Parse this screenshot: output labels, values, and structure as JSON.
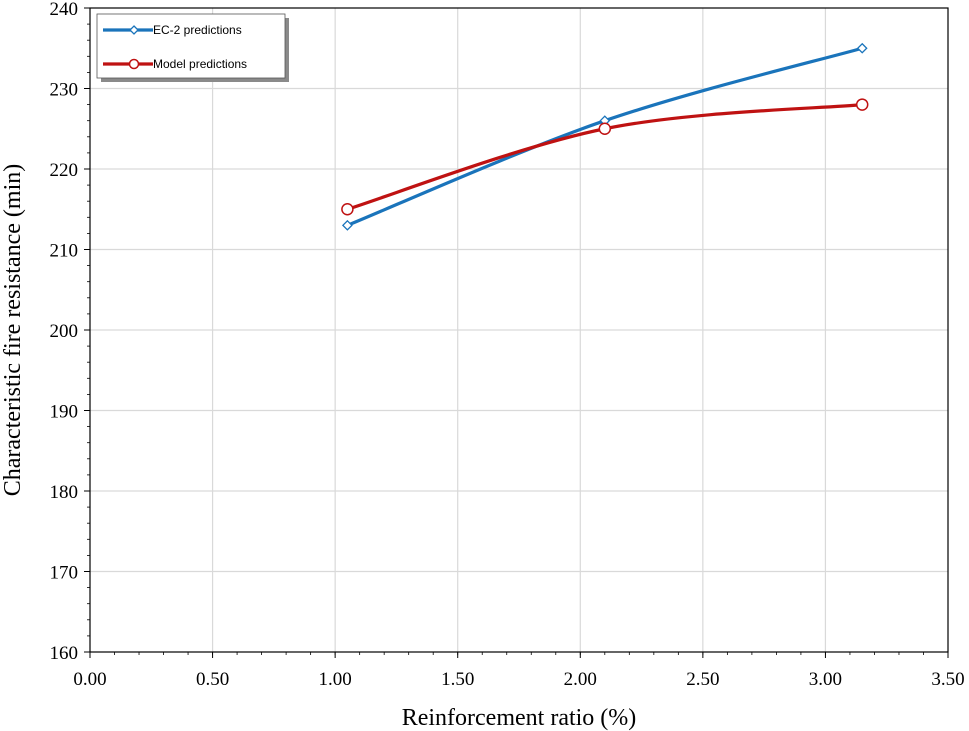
{
  "chart_data": {
    "type": "line",
    "xlabel": "Reinforcement ratio (%)",
    "ylabel": "Characteristic fire resistance (min)",
    "xlim": [
      0,
      3.5
    ],
    "ylim": [
      160,
      240
    ],
    "x_ticks": [
      "0.00",
      "0.50",
      "1.00",
      "1.50",
      "2.00",
      "2.50",
      "3.00",
      "3.50"
    ],
    "y_ticks": [
      "160",
      "170",
      "180",
      "190",
      "200",
      "210",
      "220",
      "230",
      "240"
    ],
    "grid": true,
    "smooth": true,
    "legend_position": "top-left",
    "series": [
      {
        "name": "EC-2 predictions",
        "color": "#1a74bb",
        "marker": "diamond",
        "x": [
          1.05,
          2.1,
          3.15
        ],
        "y": [
          213,
          226,
          235
        ]
      },
      {
        "name": "Model predictions",
        "color": "#bf1212",
        "marker": "circle",
        "x": [
          1.05,
          2.1,
          3.15
        ],
        "y": [
          215,
          225,
          228
        ]
      }
    ]
  }
}
